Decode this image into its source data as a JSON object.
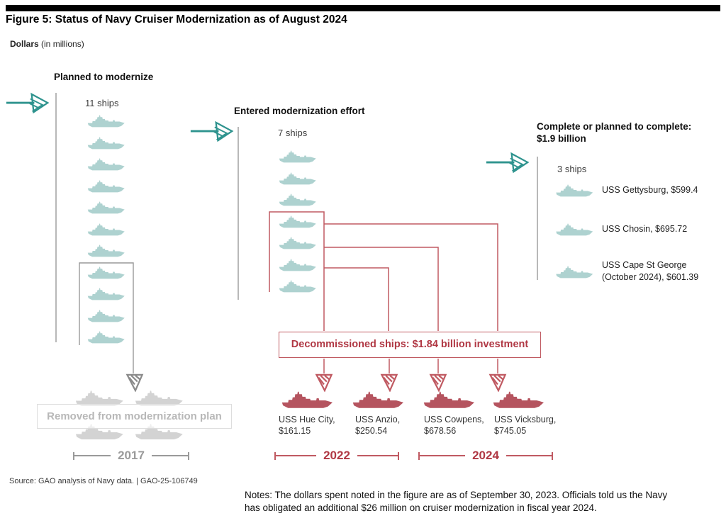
{
  "title": "Figure 5: Status of Navy Cruiser Modernization as of August 2024",
  "subtitle": {
    "bold": "Dollars",
    "rest": " (in millions)"
  },
  "columns": {
    "planned": {
      "heading": "Planned to modernize",
      "count_label": "11 ships",
      "ship_count": 11
    },
    "entered": {
      "heading": "Entered modernization effort",
      "count_label": "7 ships",
      "ship_count": 7
    },
    "complete": {
      "heading_line1": "Complete or planned to complete:",
      "heading_line2": "$1.9 billion",
      "count_label": "3 ships",
      "ship_count": 3,
      "ships": [
        {
          "line1": "USS Gettysburg, $599.4",
          "line2": "",
          "value_millions": 599.4
        },
        {
          "line1": "USS Chosin, $695.72",
          "line2": "",
          "value_millions": 695.72
        },
        {
          "line1": "USS Cape St George",
          "line2": "(October 2024), $601.39",
          "value_millions": 601.39
        }
      ]
    }
  },
  "decommissioned": {
    "box_label": "Decommissioned ships: $1.84 billion investment",
    "ship_count": 4,
    "ships": [
      {
        "name": "USS Hue City,",
        "amount": "$161.15",
        "value_millions": 161.15
      },
      {
        "name": "USS Anzio,",
        "amount": "$250.54",
        "value_millions": 250.54
      },
      {
        "name": "USS Cowpens,",
        "amount": "$678.56",
        "value_millions": 678.56
      },
      {
        "name": "USS Vicksburg,",
        "amount": "$745.05",
        "value_millions": 745.05
      }
    ],
    "timelines": [
      {
        "label": "2022"
      },
      {
        "label": "2024"
      }
    ]
  },
  "removed": {
    "label": "Removed from modernization plan",
    "timeline_label": "2017",
    "ship_count": 4
  },
  "footer": {
    "source": "Source: GAO analysis of Navy data.  |  GAO-25-106749",
    "notes_line1": "Notes: The dollars spent noted in the figure are as of September 30, 2023. Officials told us the Navy",
    "notes_line2": "has obligated an additional $26 million on cruiser modernization in fiscal year 2024."
  },
  "colors": {
    "teal_ship": "#aed2d0",
    "teal_arrow": "#2e938e",
    "red_ship": "#b5545f",
    "red_line": "#c05a62",
    "red_text": "#b03844",
    "gray_line": "#999999",
    "gray_ship": "#d3d3d3",
    "gray_arrow": "#8a8a8a",
    "removed_text": "#b8b8b8",
    "removed_border": "#dddddd",
    "timeline_gray": "#9a9a9a"
  }
}
